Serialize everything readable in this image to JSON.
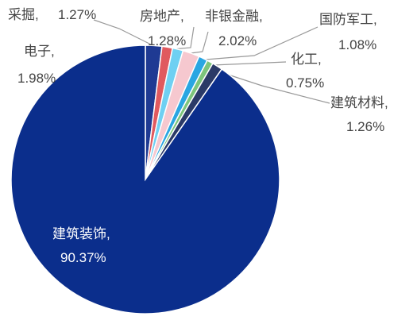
{
  "chart_data": {
    "type": "pie",
    "categories": [
      "电子,",
      "采掘,",
      "房地产,",
      "非银金融,",
      "国防军工,",
      "化工,",
      "建筑材料,",
      "建筑装饰,"
    ],
    "values": [
      1.98,
      1.27,
      1.28,
      2.02,
      1.08,
      0.75,
      1.26,
      90.37
    ],
    "value_labels": [
      "1.98%",
      "1.27%",
      "1.28%",
      "2.02%",
      "1.08%",
      "0.75%",
      "1.26%",
      "90.37%"
    ],
    "colors": [
      "#1f3a93",
      "#e05a5f",
      "#6fd0f2",
      "#f6c8cf",
      "#2aa6e2",
      "#7dc57b",
      "#2b3a67",
      "#0b2e8c"
    ]
  }
}
